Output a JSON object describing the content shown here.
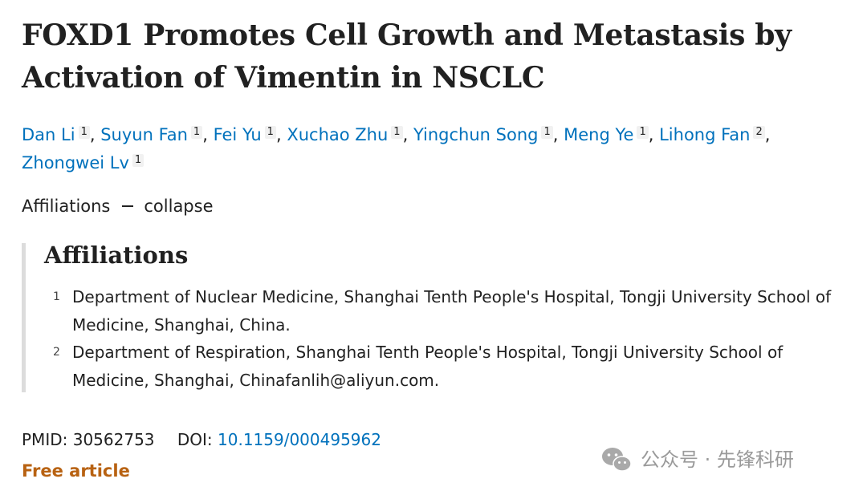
{
  "article": {
    "title": "FOXD1 Promotes Cell Growth and Metastasis by Activation of Vimentin in NSCLC",
    "authors": [
      {
        "name": "Dan Li",
        "aff": "1"
      },
      {
        "name": "Suyun Fan",
        "aff": "1"
      },
      {
        "name": "Fei Yu",
        "aff": "1"
      },
      {
        "name": "Xuchao Zhu",
        "aff": "1"
      },
      {
        "name": "Yingchun Song",
        "aff": "1"
      },
      {
        "name": "Meng Ye",
        "aff": "1"
      },
      {
        "name": "Lihong Fan",
        "aff": "2"
      },
      {
        "name": "Zhongwei Lv",
        "aff": "1"
      }
    ],
    "separator": ",",
    "affiliations_toggle": {
      "label": "Affiliations",
      "action": "collapse"
    },
    "affiliations_heading": "Affiliations",
    "affiliations": [
      {
        "num": "1",
        "text": "Department of Nuclear Medicine, Shanghai Tenth People's Hospital, Tongji University School of Medicine, Shanghai, China."
      },
      {
        "num": "2",
        "text": "Department of Respiration, Shanghai Tenth People's Hospital, Tongji University School of Medicine, Shanghai, Chinafanlih@aliyun.com."
      }
    ],
    "pmid_label": "PMID:",
    "pmid": "30562753",
    "doi_label": "DOI:",
    "doi": "10.1159/000495962",
    "free_label": "Free article"
  },
  "watermark": {
    "text": "公众号 · 先锋科研",
    "icon": "wechat-icon",
    "color": "#9a9a9a"
  },
  "colors": {
    "link": "#0071bc",
    "free": "#b86212",
    "text": "#212121"
  }
}
